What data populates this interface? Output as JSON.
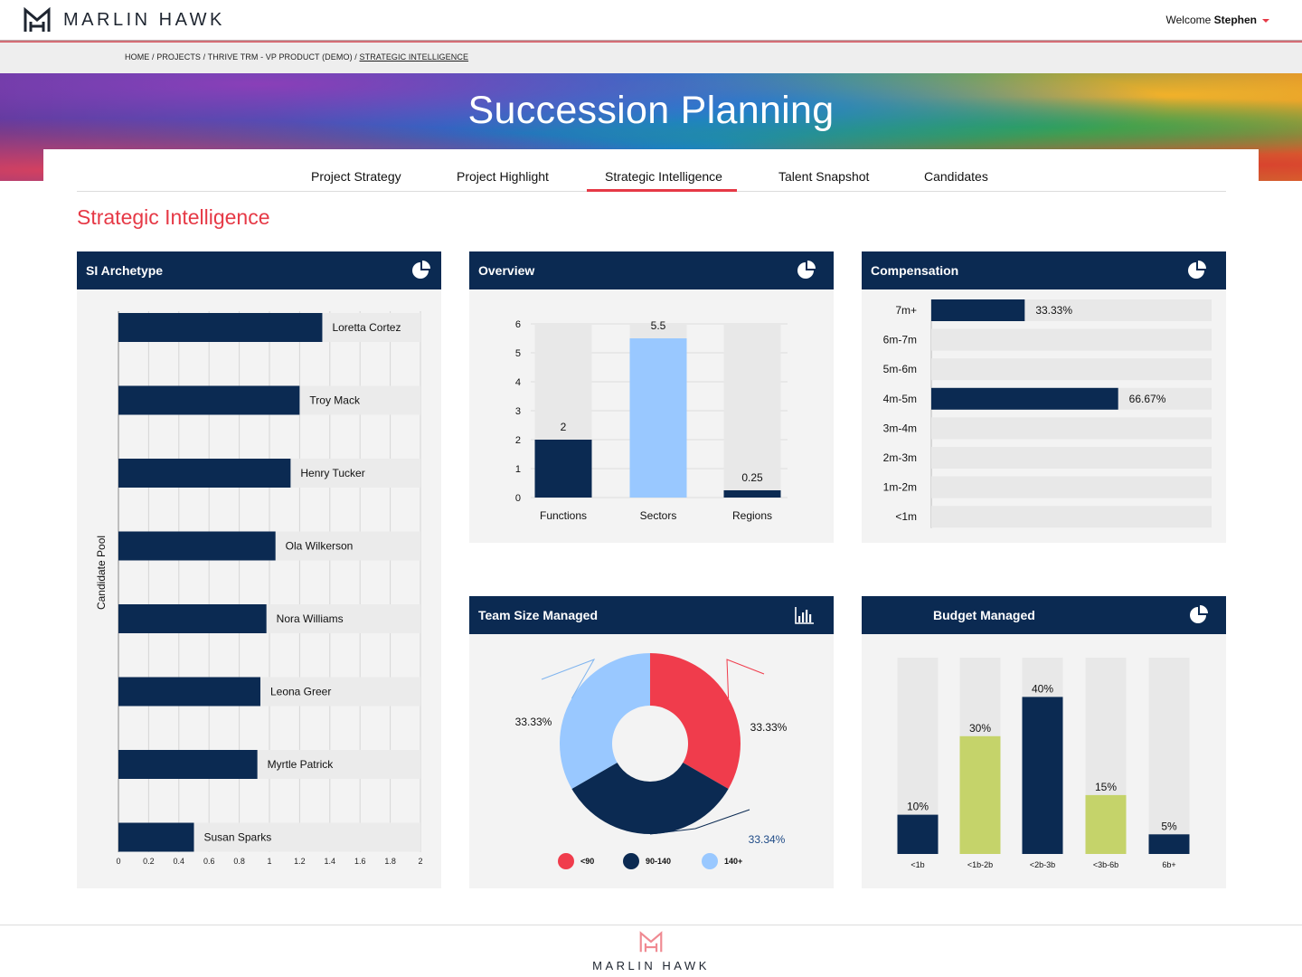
{
  "brand": {
    "name": "MARLIN HAWK",
    "accent": "#e63946",
    "navy": "#0b2a52"
  },
  "user": {
    "welcome_prefix": "Welcome",
    "name": "Stephen"
  },
  "breadcrumb": {
    "items": [
      "HOME",
      "PROJECTS",
      "THRIVE TRM - VP PRODUCT (DEMO)"
    ],
    "current": "STRATEGIC INTELLIGENCE"
  },
  "hero": {
    "title": "Succession Planning"
  },
  "tabs": [
    {
      "label": "Project Strategy",
      "active": false
    },
    {
      "label": "Project Highlight",
      "active": false
    },
    {
      "label": "Strategic Intelligence",
      "active": true
    },
    {
      "label": "Talent Snapshot",
      "active": false
    },
    {
      "label": "Candidates",
      "active": false
    }
  ],
  "section_title": "Strategic Intelligence",
  "panels": {
    "archetype": {
      "title": "SI Archetype",
      "icon": "pie-chart-icon"
    },
    "overview": {
      "title": "Overview",
      "icon": "pie-chart-icon"
    },
    "compensation": {
      "title": "Compensation",
      "icon": "pie-chart-icon"
    },
    "team_size": {
      "title": "Team Size Managed",
      "icon": "bar-chart-icon"
    },
    "budget": {
      "title": "Budget Managed",
      "icon": "pie-chart-icon"
    }
  },
  "chart_data": [
    {
      "id": "archetype",
      "type": "bar",
      "orientation": "horizontal",
      "ylabel": "Candidate Pool",
      "categories": [
        "Loretta Cortez",
        "Troy Mack",
        "Henry Tucker",
        "Ola Wilkerson",
        "Nora Williams",
        "Leona Greer",
        "Myrtle Patrick",
        "Susan Sparks"
      ],
      "values": [
        1.35,
        1.2,
        1.14,
        1.04,
        0.98,
        0.94,
        0.92,
        0.5
      ],
      "xlim": [
        0,
        2
      ],
      "xticks": [
        "0",
        "0.2",
        "0.4",
        "0.6",
        "0.8",
        "1",
        "1.2",
        "1.4",
        "1.6",
        "1.8",
        "2"
      ],
      "grid": true
    },
    {
      "id": "overview",
      "type": "bar",
      "categories": [
        "Functions",
        "Sectors",
        "Regions"
      ],
      "values": [
        2,
        5.5,
        0.25
      ],
      "value_labels": [
        "2",
        "5.5",
        "0.25"
      ],
      "colors": [
        "#0b2a52",
        "#99c8ff",
        "#0b2a52"
      ],
      "ylim": [
        0,
        6
      ],
      "yticks": [
        "0",
        "1",
        "2",
        "3",
        "4",
        "5",
        "6"
      ]
    },
    {
      "id": "compensation",
      "type": "bar",
      "orientation": "horizontal",
      "categories": [
        "7m+",
        "6m-7m",
        "5m-6m",
        "4m-5m",
        "3m-4m",
        "2m-3m",
        "1m-2m",
        "<1m"
      ],
      "values": [
        33.33,
        0,
        0,
        66.67,
        0,
        0,
        0,
        0
      ],
      "value_labels": [
        "33.33%",
        "",
        "",
        "66.67%",
        "",
        "",
        "",
        ""
      ],
      "xlim": [
        0,
        100
      ]
    },
    {
      "id": "team_size",
      "type": "pie",
      "donut": true,
      "labels": [
        "<90",
        "90-140",
        "140+"
      ],
      "values": [
        33.33,
        33.34,
        33.33
      ],
      "value_labels": [
        "33.33%",
        "33.34%",
        "33.33%"
      ],
      "colors": [
        "#f03c4c",
        "#0b2a52",
        "#99c8ff"
      ],
      "legend": "bottom"
    },
    {
      "id": "budget",
      "type": "bar",
      "categories": [
        "<1b",
        "<1b-2b",
        "<2b-3b",
        "<3b-6b",
        "6b+"
      ],
      "values": [
        10,
        30,
        40,
        15,
        5
      ],
      "value_labels": [
        "10%",
        "30%",
        "40%",
        "15%",
        "5%"
      ],
      "colors": [
        "#0b2a52",
        "#c5d36a",
        "#0b2a52",
        "#c5d36a",
        "#0b2a52"
      ],
      "ylim": [
        0,
        50
      ]
    }
  ],
  "footer": {
    "brand": "MARLIN HAWK"
  }
}
